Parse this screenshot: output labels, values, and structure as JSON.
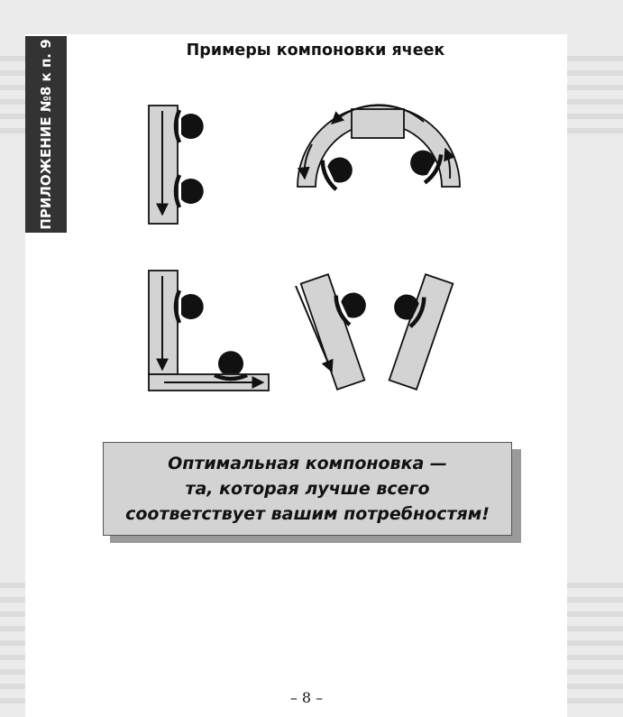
{
  "side_label": "ПРИЛОЖЕНИЕ №8 к п. 9",
  "title": "Примеры компоновки ячеек",
  "callout": {
    "lines": [
      "Оптимальная компоновка —",
      "та, которая лучше всего",
      "соответствует вашим потребностям!"
    ]
  },
  "page_number": "– 8 –",
  "colors": {
    "panel_fill": "#d3d3d3",
    "dark": "#111111",
    "side_tab": "#333333"
  }
}
